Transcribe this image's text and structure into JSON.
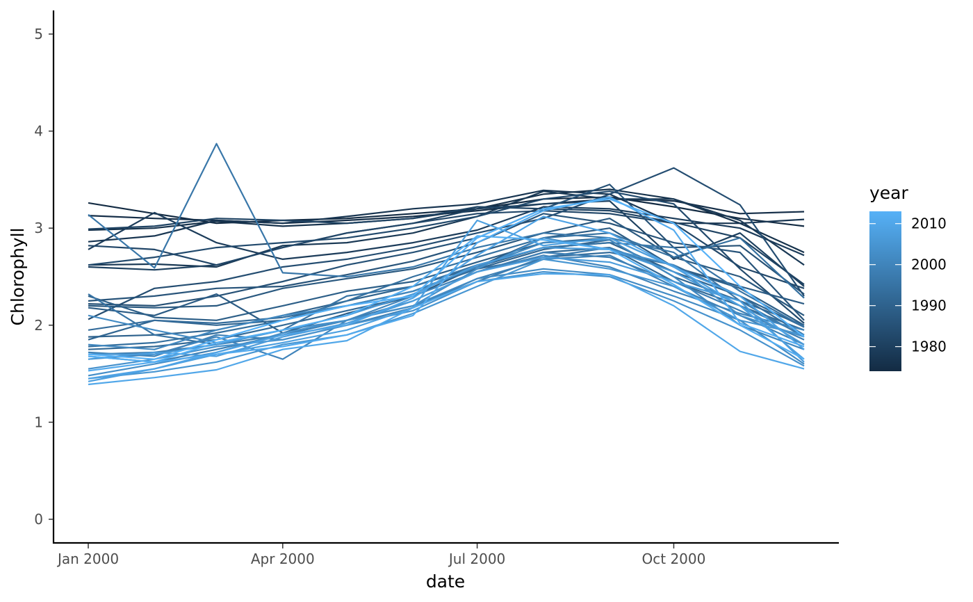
{
  "chart_data": {
    "type": "line",
    "title": "",
    "xlabel": "date",
    "ylabel": "Chlorophyll",
    "x": [
      "2000-01-01",
      "2000-02-01",
      "2000-03-01",
      "2000-04-01",
      "2000-05-01",
      "2000-06-01",
      "2000-07-01",
      "2000-08-01",
      "2000-09-01",
      "2000-10-01",
      "2000-11-01",
      "2000-12-01"
    ],
    "x_ticks": [
      {
        "date": "2000-01-01",
        "label": "Jan 2000"
      },
      {
        "date": "2000-04-01",
        "label": "Apr 2000"
      },
      {
        "date": "2000-07-01",
        "label": "Jul 2000"
      },
      {
        "date": "2000-10-01",
        "label": "Oct 2000"
      }
    ],
    "xlim": [
      "2000-01-01",
      "2000-12-01"
    ],
    "ylim": [
      0,
      5
    ],
    "y_ticks": [
      0,
      1,
      2,
      3,
      4,
      5
    ],
    "grid": false,
    "legend": {
      "title": "year",
      "position": "right",
      "type": "colorbar",
      "range": [
        1974,
        2013
      ],
      "breaks": [
        1980,
        1990,
        2000,
        2010
      ],
      "color_low": "#132b43",
      "color_high": "#56b1f7"
    },
    "series": [
      {
        "year": 1974,
        "values": [
          3.26,
          3.15,
          3.05,
          3.08,
          3.1,
          3.15,
          3.2,
          3.3,
          3.32,
          3.22,
          3.1,
          3.02
        ]
      },
      {
        "year": 1975,
        "values": [
          3.13,
          3.1,
          3.08,
          3.05,
          3.08,
          3.12,
          3.18,
          3.25,
          3.3,
          3.28,
          3.15,
          3.17
        ]
      },
      {
        "year": 1976,
        "values": [
          2.98,
          3.0,
          3.07,
          3.02,
          3.05,
          3.1,
          3.2,
          3.35,
          3.4,
          3.3,
          3.05,
          2.75
        ]
      },
      {
        "year": 1977,
        "values": [
          2.86,
          2.92,
          3.08,
          3.05,
          3.12,
          3.2,
          3.25,
          3.39,
          3.35,
          3.05,
          3.05,
          3.09
        ]
      },
      {
        "year": 1978,
        "values": [
          2.62,
          2.63,
          2.6,
          2.82,
          2.85,
          2.95,
          3.12,
          3.38,
          3.3,
          3.3,
          3.08,
          2.62
        ]
      },
      {
        "year": 1979,
        "values": [
          2.78,
          3.16,
          2.85,
          2.68,
          2.75,
          2.85,
          2.98,
          3.22,
          3.2,
          3.1,
          3.0,
          2.72
        ]
      },
      {
        "year": 1980,
        "values": [
          2.6,
          2.57,
          2.62,
          2.8,
          2.95,
          3.05,
          3.2,
          3.25,
          3.28,
          2.68,
          2.95,
          2.4
        ]
      },
      {
        "year": 1981,
        "values": [
          2.99,
          3.02,
          3.1,
          3.08,
          3.05,
          3.1,
          3.22,
          3.2,
          3.18,
          3.06,
          2.9,
          2.42
        ]
      },
      {
        "year": 1982,
        "values": [
          2.82,
          2.78,
          2.62,
          2.8,
          2.95,
          3.05,
          3.15,
          3.18,
          3.15,
          3.05,
          2.6,
          2.38
        ]
      },
      {
        "year": 1983,
        "values": [
          2.62,
          2.7,
          2.8,
          2.85,
          2.9,
          3.0,
          3.12,
          3.3,
          3.38,
          3.25,
          2.58,
          2.02
        ]
      },
      {
        "year": 1984,
        "values": [
          2.06,
          2.38,
          2.45,
          2.6,
          2.68,
          2.8,
          2.95,
          3.1,
          3.35,
          3.62,
          3.24,
          2.3
        ]
      },
      {
        "year": 1985,
        "values": [
          2.22,
          2.2,
          2.3,
          2.45,
          2.62,
          2.75,
          2.9,
          3.2,
          3.45,
          2.8,
          2.82,
          2.32
        ]
      },
      {
        "year": 1986,
        "values": [
          2.25,
          2.3,
          2.38,
          2.4,
          2.52,
          2.66,
          2.85,
          3.15,
          3.05,
          2.85,
          2.75,
          2.05
        ]
      },
      {
        "year": 1987,
        "values": [
          2.2,
          2.18,
          2.2,
          2.38,
          2.48,
          2.58,
          2.75,
          2.95,
          3.1,
          2.7,
          2.5,
          2.1
        ]
      },
      {
        "year": 1988,
        "values": [
          2.18,
          2.1,
          2.32,
          1.92,
          2.12,
          2.3,
          2.6,
          2.9,
          3.0,
          2.6,
          2.4,
          2.22
        ]
      },
      {
        "year": 1989,
        "values": [
          2.3,
          2.08,
          2.05,
          2.2,
          2.35,
          2.45,
          2.65,
          2.85,
          2.9,
          2.6,
          2.38,
          2.0
        ]
      },
      {
        "year": 1990,
        "values": [
          1.88,
          1.9,
          1.95,
          2.1,
          2.25,
          2.4,
          2.6,
          2.8,
          2.85,
          2.55,
          2.3,
          1.98
        ]
      },
      {
        "year": 1991,
        "values": [
          1.85,
          2.05,
          2.0,
          2.05,
          2.2,
          2.35,
          2.58,
          2.78,
          2.88,
          2.5,
          2.25,
          2.0
        ]
      },
      {
        "year": 1992,
        "values": [
          1.75,
          1.78,
          1.85,
          2.0,
          2.15,
          2.3,
          2.55,
          2.75,
          2.8,
          2.45,
          2.2,
          1.95
        ]
      },
      {
        "year": 1993,
        "values": [
          1.95,
          2.05,
          2.02,
          2.08,
          2.2,
          2.35,
          2.58,
          2.7,
          2.75,
          2.62,
          2.3,
          1.9
        ]
      },
      {
        "year": 1994,
        "values": [
          1.78,
          1.82,
          1.92,
          2.05,
          2.25,
          2.5,
          2.7,
          2.9,
          2.95,
          2.7,
          2.9,
          2.28
        ]
      },
      {
        "year": 1995,
        "values": [
          2.32,
          1.9,
          1.8,
          1.95,
          2.3,
          2.4,
          2.62,
          2.8,
          2.85,
          2.8,
          2.35,
          1.98
        ]
      },
      {
        "year": 1996,
        "values": [
          3.14,
          2.59,
          3.87,
          2.54,
          2.5,
          2.6,
          2.8,
          2.95,
          2.9,
          2.75,
          2.25,
          1.88
        ]
      },
      {
        "year": 1997,
        "values": [
          1.7,
          1.72,
          1.8,
          1.9,
          2.05,
          2.2,
          2.45,
          2.7,
          2.8,
          2.55,
          2.2,
          1.9
        ]
      },
      {
        "year": 1998,
        "values": [
          1.68,
          1.62,
          1.75,
          1.9,
          2.05,
          2.25,
          2.55,
          2.75,
          2.7,
          2.45,
          2.15,
          1.85
        ]
      },
      {
        "year": 1999,
        "values": [
          1.72,
          1.68,
          1.9,
          1.85,
          2.0,
          2.18,
          2.48,
          2.68,
          2.72,
          2.4,
          2.1,
          1.8
        ]
      },
      {
        "year": 2000,
        "values": [
          1.65,
          1.7,
          1.88,
          1.65,
          2.05,
          2.3,
          2.55,
          2.72,
          2.6,
          2.35,
          2.12,
          1.95
        ]
      },
      {
        "year": 2001,
        "values": [
          1.8,
          1.75,
          1.95,
          2.1,
          2.2,
          2.35,
          2.6,
          2.85,
          2.88,
          2.5,
          2.0,
          1.75
        ]
      },
      {
        "year": 2002,
        "values": [
          2.1,
          1.95,
          1.82,
          1.95,
          2.05,
          2.2,
          2.48,
          2.58,
          2.52,
          2.3,
          2.05,
          1.6
        ]
      },
      {
        "year": 2003,
        "values": [
          1.48,
          1.6,
          1.72,
          1.92,
          2.05,
          2.2,
          2.58,
          2.9,
          2.78,
          2.62,
          2.1,
          1.88
        ]
      },
      {
        "year": 2004,
        "values": [
          1.55,
          1.65,
          1.78,
          1.85,
          2.0,
          2.15,
          2.45,
          2.55,
          2.5,
          2.25,
          1.95,
          1.58
        ]
      },
      {
        "year": 2005,
        "values": [
          1.45,
          1.52,
          1.62,
          1.8,
          1.9,
          2.12,
          2.4,
          2.68,
          2.58,
          2.4,
          2.05,
          1.9
        ]
      },
      {
        "year": 2006,
        "values": [
          1.7,
          1.7,
          1.8,
          1.95,
          2.1,
          2.32,
          2.62,
          2.8,
          2.78,
          2.55,
          2.2,
          1.8
        ]
      },
      {
        "year": 2007,
        "values": [
          1.65,
          1.72,
          1.68,
          1.88,
          2.02,
          2.25,
          2.55,
          2.7,
          2.65,
          2.45,
          2.25,
          1.62
        ]
      },
      {
        "year": 2008,
        "values": [
          1.42,
          1.55,
          1.7,
          1.82,
          1.95,
          2.18,
          3.08,
          2.82,
          2.9,
          2.6,
          2.2,
          1.65
        ]
      },
      {
        "year": 2009,
        "values": [
          1.45,
          1.55,
          1.72,
          1.9,
          2.0,
          2.28,
          2.72,
          3.12,
          2.95,
          2.6,
          2.3,
          1.75
        ]
      },
      {
        "year": 2010,
        "values": [
          1.39,
          1.46,
          1.54,
          1.75,
          1.84,
          2.18,
          2.45,
          2.53,
          2.52,
          2.2,
          1.73,
          1.55
        ]
      },
      {
        "year": 2011,
        "values": [
          1.53,
          1.62,
          1.7,
          1.78,
          1.9,
          2.1,
          2.85,
          3.18,
          3.32,
          2.98,
          2.02,
          1.78
        ]
      },
      {
        "year": 2012,
        "values": [
          1.68,
          1.62,
          1.82,
          1.95,
          2.1,
          2.4,
          2.92,
          2.88,
          2.78,
          2.42,
          2.0,
          1.65
        ]
      },
      {
        "year": 2013,
        "values": [
          1.7,
          1.65,
          1.85,
          2.05,
          2.2,
          2.3,
          2.9,
          3.2,
          3.3,
          3.05,
          2.4,
          1.88
        ]
      }
    ]
  }
}
